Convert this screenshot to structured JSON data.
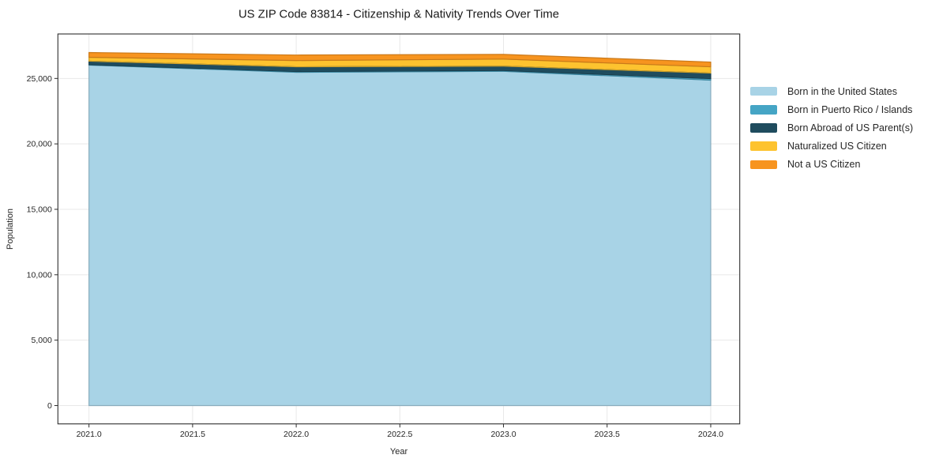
{
  "figure": {
    "background": "#ffffff"
  },
  "chart_data": {
    "type": "area",
    "stacked": true,
    "title": "US ZIP Code 83814 - Citizenship & Nativity Trends Over Time",
    "xlabel": "Year",
    "ylabel": "Population",
    "x": [
      2021,
      2022,
      2023,
      2024
    ],
    "series": [
      {
        "name": "Born in the United States",
        "color": "#a8d3e6",
        "values": [
          26020,
          25470,
          25550,
          24870
        ]
      },
      {
        "name": "Born in Puerto Rico / Islands",
        "color": "#45a5c5",
        "values": [
          30,
          60,
          60,
          120
        ]
      },
      {
        "name": "Born Abroad of US Parent(s)",
        "color": "#1f4c5e",
        "values": [
          270,
          360,
          330,
          420
        ]
      },
      {
        "name": "Naturalized US Citizen",
        "color": "#fdc32f",
        "values": [
          300,
          480,
          540,
          480
        ]
      },
      {
        "name": "Not a US Citizen",
        "color": "#f7941f",
        "values": [
          360,
          420,
          360,
          360
        ]
      }
    ],
    "x_tick_values": [
      2021.0,
      2021.5,
      2022.0,
      2022.5,
      2023.0,
      2023.5,
      2024.0
    ],
    "x_tick_labels": [
      "2021.0",
      "2021.5",
      "2022.0",
      "2022.5",
      "2023.0",
      "2023.5",
      "2024.0"
    ],
    "y_tick_values": [
      0,
      5000,
      10000,
      15000,
      20000,
      25000
    ],
    "y_tick_labels": [
      "0",
      "5,000",
      "10,000",
      "15,000",
      "20,000",
      "25,000"
    ],
    "xlim": [
      2020.85,
      2024.14
    ],
    "ylim": [
      -1400,
      28400
    ],
    "grid": true,
    "legend_position": "right of axes, frameless"
  },
  "colors": {
    "grid": "#e8e8e8",
    "spine": "#2e2e2e",
    "tick": "#2e2e2e",
    "text": "#262626",
    "title_text": "#1a1a1a"
  }
}
